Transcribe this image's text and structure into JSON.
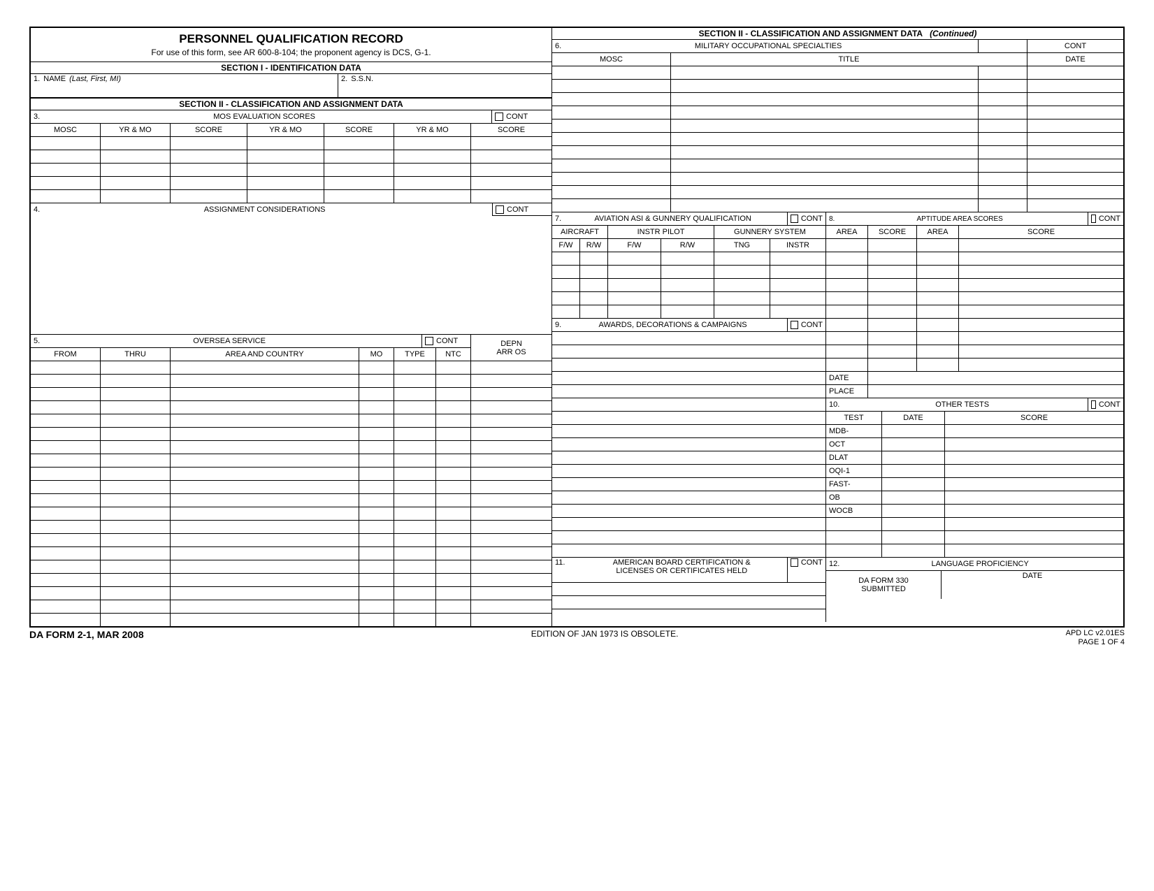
{
  "header": {
    "title": "PERSONNEL QUALIFICATION RECORD",
    "subtitle": "For use of this form, see AR 600-8-104; the proponent agency is DCS, G-1."
  },
  "section1": {
    "title": "SECTION I - IDENTIFICATION DATA",
    "name_label_num": "1.",
    "name_label": "NAME",
    "name_hint": "(Last, First, MI)",
    "ssn_label_num": "2.",
    "ssn_label": "S.S.N."
  },
  "section2_left": {
    "title": "SECTION II - CLASSIFICATION AND ASSIGNMENT DATA",
    "box3": {
      "num": "3.",
      "title": "MOS EVALUATION SCORES",
      "cont": "CONT",
      "cols": [
        "MOSC",
        "YR & MO",
        "SCORE",
        "YR & MO",
        "SCORE",
        "YR & MO",
        "SCORE"
      ],
      "row_count": 5
    },
    "box4": {
      "num": "4.",
      "title": "ASSIGNMENT CONSIDERATIONS",
      "cont": "CONT"
    },
    "box5": {
      "num": "5.",
      "title": "OVERSEA SERVICE",
      "cont": "CONT",
      "depn": "DEPN",
      "arros": "ARR OS",
      "cols": [
        "FROM",
        "THRU",
        "AREA AND COUNTRY",
        "MO",
        "TYPE",
        "NTC"
      ],
      "row_count": 20
    }
  },
  "section2_right": {
    "title_a": "SECTION II - CLASSIFICATION AND ASSIGNMENT DATA",
    "title_b": "(Continued)",
    "box6": {
      "num": "6.",
      "title": "MILITARY OCCUPATIONAL SPECIALTIES",
      "cont": "CONT",
      "cols": [
        "MOSC",
        "TITLE",
        "DATE"
      ],
      "row_count": 11
    },
    "box7": {
      "num": "7.",
      "title": "AVIATION ASI & GUNNERY QUALIFICATION",
      "cont": "CONT",
      "group1": "AIRCRAFT",
      "group2": "INSTR PILOT",
      "group3": "GUNNERY SYSTEM",
      "subs": [
        "F/W",
        "R/W",
        "F/W",
        "R/W",
        "TNG",
        "INSTR"
      ],
      "row_count": 5
    },
    "box8": {
      "num": "8.",
      "title": "APTITUDE AREA SCORES",
      "cont": "CONT",
      "cols": [
        "AREA",
        "SCORE",
        "AREA",
        "SCORE"
      ],
      "row_count": 10,
      "date": "DATE",
      "place": "PLACE"
    },
    "box9": {
      "num": "9.",
      "title": "AWARDS, DECORATIONS & CAMPAIGNS",
      "cont": "CONT",
      "row_count": 17
    },
    "box10": {
      "num": "10.",
      "title": "OTHER TESTS",
      "cont": "CONT",
      "cols": [
        "TEST",
        "DATE",
        "SCORE"
      ],
      "tests": [
        "MDB-",
        "OCT",
        "DLAT",
        "OQI-1",
        "FAST-",
        "OB",
        "WOCB"
      ],
      "extra_rows": 3
    },
    "box11": {
      "num": "11.",
      "title_l1": "AMERICAN BOARD CERTIFICATION &",
      "title_l2": "LICENSES OR CERTIFICATES HELD",
      "cont": "CONT",
      "row_count": 3
    },
    "box12": {
      "num": "12.",
      "title": "LANGUAGE PROFICIENCY",
      "sub_l1": "DA FORM 330",
      "sub_l2": "SUBMITTED",
      "date": "DATE"
    }
  },
  "footer": {
    "left": "DA FORM 2-1, MAR 2008",
    "mid": "EDITION OF JAN 1973 IS OBSOLETE.",
    "right1": "APD LC v2.01ES",
    "right2": "PAGE 1 OF 4"
  },
  "layout": {
    "left_widths_box3": [
      100,
      100,
      110,
      110,
      100,
      110,
      116
    ],
    "left_widths_box5": [
      100,
      100,
      270,
      50,
      60,
      50,
      116
    ],
    "right_widths_box6": [
      170,
      440,
      70,
      135
    ],
    "right_widths_box7": [
      40,
      40,
      76,
      76,
      80,
      80
    ],
    "right_widths_box8": [
      60,
      70,
      60,
      70
    ],
    "right_widths_box10": [
      80,
      90,
      90
    ]
  }
}
